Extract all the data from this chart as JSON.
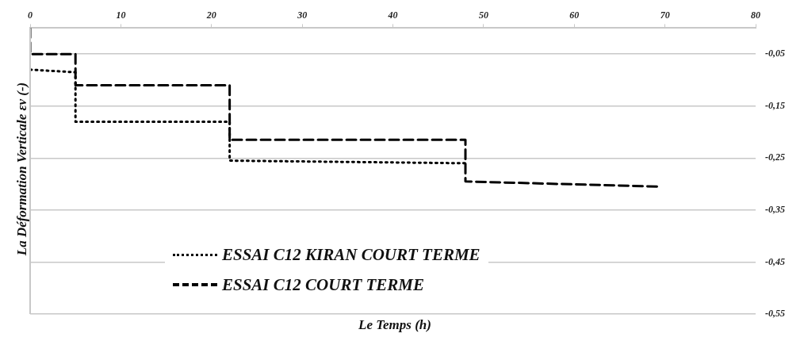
{
  "chart_data": {
    "type": "line",
    "xlabel": "Le Temps (h)",
    "ylabel": "La Déformation Verticale εv (-)",
    "xlim": [
      0,
      80
    ],
    "xticks": [
      0,
      10,
      20,
      30,
      40,
      50,
      60,
      70,
      80
    ],
    "ylim": [
      -0.55,
      0
    ],
    "yticks": [
      {
        "value": -0.05,
        "label": "-0,05"
      },
      {
        "value": -0.15,
        "label": "-0,15"
      },
      {
        "value": -0.25,
        "label": "-0,25"
      },
      {
        "value": -0.35,
        "label": "-0,35"
      },
      {
        "value": -0.45,
        "label": "-0,45"
      },
      {
        "value": -0.55,
        "label": "-0,55"
      }
    ],
    "grid": "y",
    "legend": "bottom",
    "marker": "none",
    "series": [
      {
        "name": "ESSAI C12 KIRAN COURT TERME",
        "color": "#000000",
        "line_style": "dotted",
        "x": [
          0,
          5,
          5,
          22,
          22,
          48
        ],
        "values": [
          -0.08,
          -0.085,
          -0.18,
          -0.18,
          -0.255,
          -0.26
        ]
      },
      {
        "name": "ESSAI C12 COURT TERME",
        "color": "#000000",
        "line_style": "dashed",
        "x": [
          0,
          0,
          5,
          5,
          22,
          22,
          48,
          48,
          69.5
        ],
        "values": [
          0,
          -0.05,
          -0.05,
          -0.11,
          -0.11,
          -0.215,
          -0.215,
          -0.295,
          -0.305
        ]
      }
    ]
  }
}
